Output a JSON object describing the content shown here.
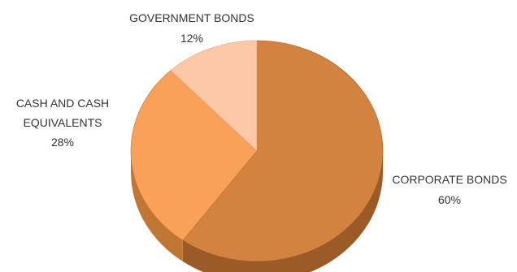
{
  "chart_data": {
    "type": "pie",
    "style": "3d",
    "slices": [
      {
        "label": "CORPORATE BONDS",
        "value": 60,
        "value_label": "60%",
        "color": "#D4823F",
        "side_color": "#9B5A26"
      },
      {
        "label": "CASH AND CASH EQUIVALENTS",
        "label_lines": [
          "CASH AND CASH",
          "EQUIVALENTS"
        ],
        "value": 28,
        "value_label": "28%",
        "color": "#F9A159",
        "side_color": "#C27634"
      },
      {
        "label": "GOVERNMENT BONDS",
        "value": 12,
        "value_label": "12%",
        "color": "#FDC8A8",
        "side_color": "#D9A182"
      }
    ]
  }
}
